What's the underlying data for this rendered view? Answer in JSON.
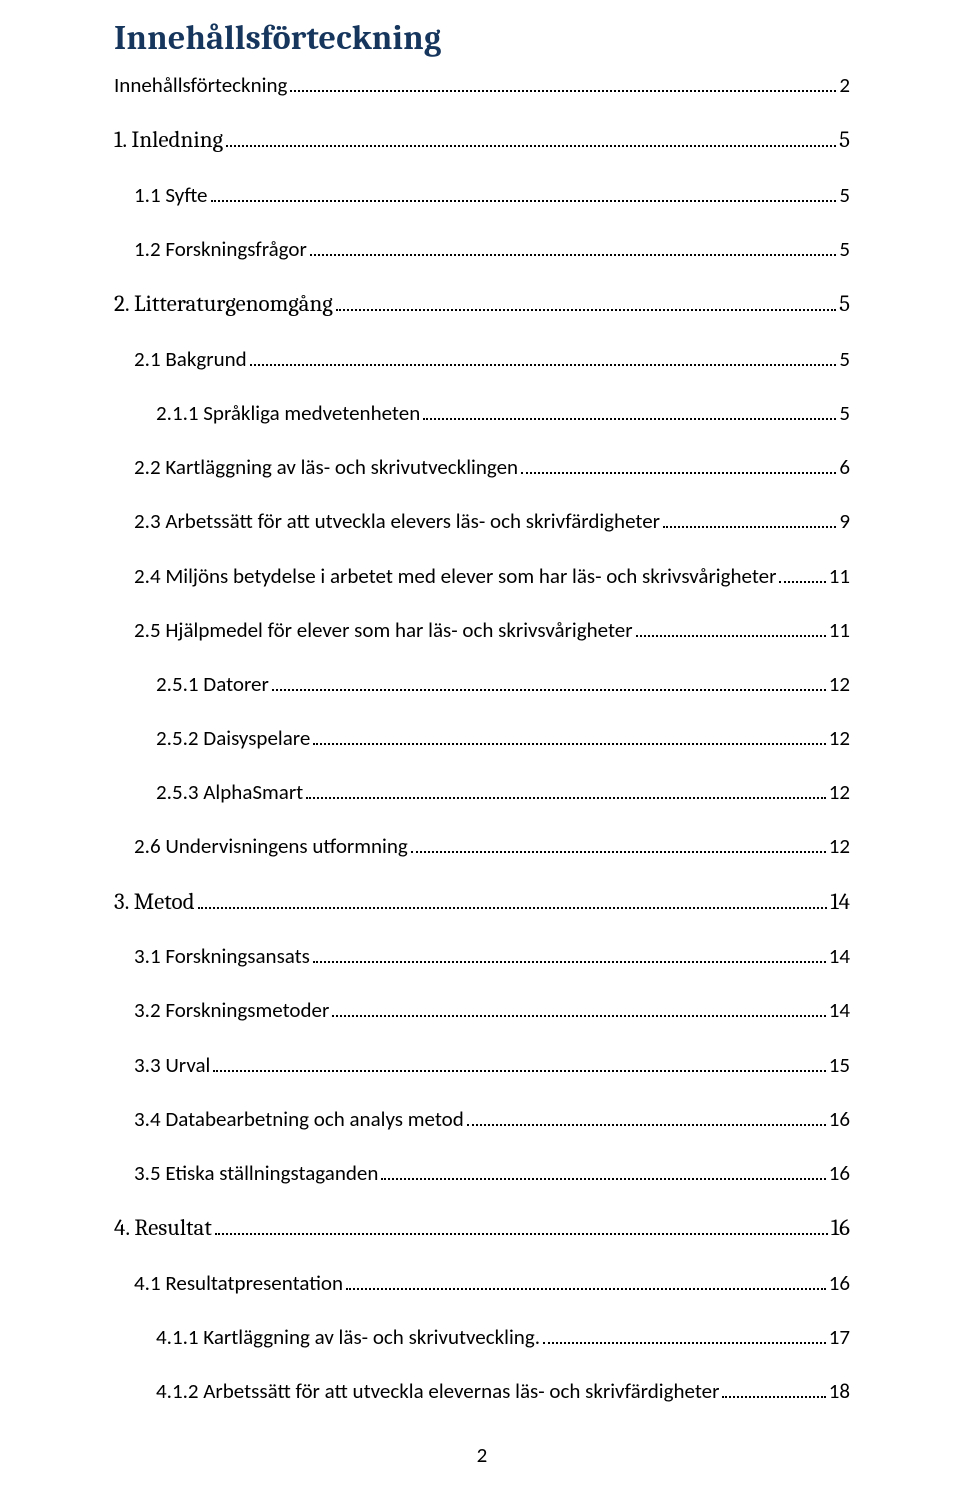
{
  "title": "Innehållsförteckning",
  "entries": [
    {
      "label": "Innehållsförteckning",
      "page": "2",
      "level": 0,
      "heading": false
    },
    {
      "label": "1. Inledning",
      "page": "5",
      "level": 0,
      "heading": true
    },
    {
      "label": "1.1 Syfte",
      "page": "5",
      "level": 1,
      "heading": false
    },
    {
      "label": "1.2 Forskningsfrågor",
      "page": "5",
      "level": 1,
      "heading": false
    },
    {
      "label": "2. Litteraturgenomgång",
      "page": "5",
      "level": 0,
      "heading": true
    },
    {
      "label": "2.1 Bakgrund",
      "page": "5",
      "level": 1,
      "heading": false
    },
    {
      "label": "2.1.1 Språkliga medvetenheten",
      "page": "5",
      "level": 2,
      "heading": false
    },
    {
      "label": "2.2 Kartläggning av läs- och skrivutvecklingen",
      "page": "6",
      "level": 1,
      "heading": false
    },
    {
      "label": "2.3 Arbetssätt för att utveckla elevers läs- och skrivfärdigheter",
      "page": "9",
      "level": 1,
      "heading": false
    },
    {
      "label": "2.4 Miljöns betydelse i arbetet med elever som har läs- och skrivsvårigheter",
      "page": "11",
      "level": 1,
      "heading": false
    },
    {
      "label": "2.5 Hjälpmedel för elever som har läs- och skrivsvårigheter",
      "page": "11",
      "level": 1,
      "heading": false
    },
    {
      "label": "2.5.1 Datorer",
      "page": "12",
      "level": 2,
      "heading": false
    },
    {
      "label": "2.5.2 Daisyspelare",
      "page": "12",
      "level": 2,
      "heading": false
    },
    {
      "label": "2.5.3 AlphaSmart",
      "page": "12",
      "level": 2,
      "heading": false
    },
    {
      "label": "2.6 Undervisningens utformning",
      "page": "12",
      "level": 1,
      "heading": false
    },
    {
      "label": "3. Metod",
      "page": "14",
      "level": 0,
      "heading": true
    },
    {
      "label": "3.1 Forskningsansats",
      "page": "14",
      "level": 1,
      "heading": false
    },
    {
      "label": "3.2 Forskningsmetoder",
      "page": "14",
      "level": 1,
      "heading": false
    },
    {
      "label": "3.3 Urval",
      "page": "15",
      "level": 1,
      "heading": false
    },
    {
      "label": "3.4 Databearbetning och analys metod",
      "page": "16",
      "level": 1,
      "heading": false
    },
    {
      "label": "3.5 Etiska ställningstaganden",
      "page": "16",
      "level": 1,
      "heading": false
    },
    {
      "label": "4. Resultat",
      "page": "16",
      "level": 0,
      "heading": true
    },
    {
      "label": "4.1 Resultatpresentation",
      "page": "16",
      "level": 1,
      "heading": false
    },
    {
      "label": "4.1.1 Kartläggning av läs- och skrivutveckling.",
      "page": "17",
      "level": 2,
      "heading": false
    },
    {
      "label": "4.1.2 Arbetssätt för att utveckla elevernas läs- och skrivfärdigheter",
      "page": "18",
      "level": 2,
      "heading": false
    }
  ],
  "footer_page": "2",
  "colors": {
    "title": "#17365d",
    "text": "#000000",
    "background": "#ffffff"
  }
}
